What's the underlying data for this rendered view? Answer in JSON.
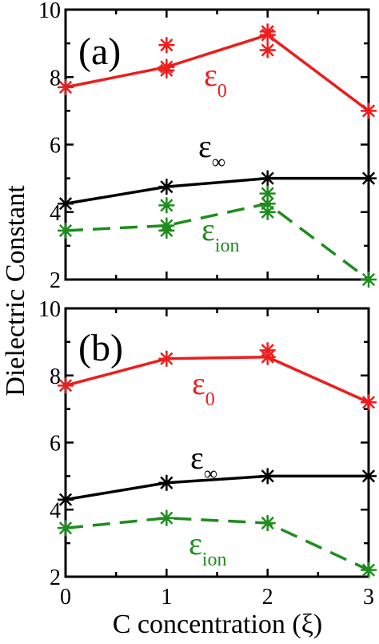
{
  "chart_data": [
    {
      "type": "line",
      "panel_label": "(a)",
      "x": [
        0,
        1,
        2,
        3
      ],
      "xlim": [
        0,
        3
      ],
      "ylim": [
        2,
        10
      ],
      "xticks": [
        0,
        1,
        2,
        3
      ],
      "yticks": [
        2,
        4,
        6,
        8,
        10
      ],
      "xtick_labels": [
        "",
        "",
        "",
        ""
      ],
      "ytick_labels": [
        "2",
        "4",
        "6",
        "8",
        "10"
      ],
      "series": [
        {
          "id": "eps0",
          "label_main": "ε",
          "label_sub": "0",
          "color": "#ee1c1c",
          "dash": "solid",
          "values": [
            7.7,
            8.3,
            9.25,
            7.0
          ],
          "extra_points": [
            [
              1,
              8.95
            ],
            [
              1,
              8.2
            ],
            [
              2,
              9.35
            ],
            [
              2,
              8.8
            ]
          ]
        },
        {
          "id": "epsinf",
          "label_main": "ε",
          "label_sub": "∞",
          "color": "#000000",
          "dash": "solid",
          "values": [
            4.25,
            4.75,
            5.0,
            5.0
          ],
          "extra_points": []
        },
        {
          "id": "epsion",
          "label_main": "ε",
          "label_sub": "ion",
          "color": "#1e8c1e",
          "dash": "dashed",
          "values": [
            3.45,
            3.6,
            4.25,
            2.0
          ],
          "extra_points": [
            [
              1,
              4.2
            ],
            [
              1,
              3.45
            ],
            [
              2,
              4.55
            ],
            [
              2,
              4.0
            ]
          ]
        }
      ]
    },
    {
      "type": "line",
      "panel_label": "(b)",
      "x": [
        0,
        1,
        2,
        3
      ],
      "xlim": [
        0,
        3
      ],
      "ylim": [
        2,
        10
      ],
      "xticks": [
        0,
        1,
        2,
        3
      ],
      "yticks": [
        2,
        4,
        6,
        8,
        10
      ],
      "xtick_labels": [
        "0",
        "1",
        "2",
        "3"
      ],
      "ytick_labels": [
        "2",
        "4",
        "6",
        "8",
        "10"
      ],
      "series": [
        {
          "id": "eps0",
          "label_main": "ε",
          "label_sub": "0",
          "color": "#ee1c1c",
          "dash": "solid",
          "values": [
            7.7,
            8.5,
            8.55,
            7.2
          ],
          "extra_points": [
            [
              2,
              8.75
            ]
          ]
        },
        {
          "id": "epsinf",
          "label_main": "ε",
          "label_sub": "∞",
          "color": "#000000",
          "dash": "solid",
          "values": [
            4.3,
            4.8,
            5.0,
            5.0
          ],
          "extra_points": []
        },
        {
          "id": "epsion",
          "label_main": "ε",
          "label_sub": "ion",
          "color": "#1e8c1e",
          "dash": "dashed",
          "values": [
            3.45,
            3.75,
            3.6,
            2.2
          ],
          "extra_points": []
        }
      ]
    }
  ],
  "ylabel": "Dielectric Constant",
  "xlabel": "C concentration (ξ)"
}
